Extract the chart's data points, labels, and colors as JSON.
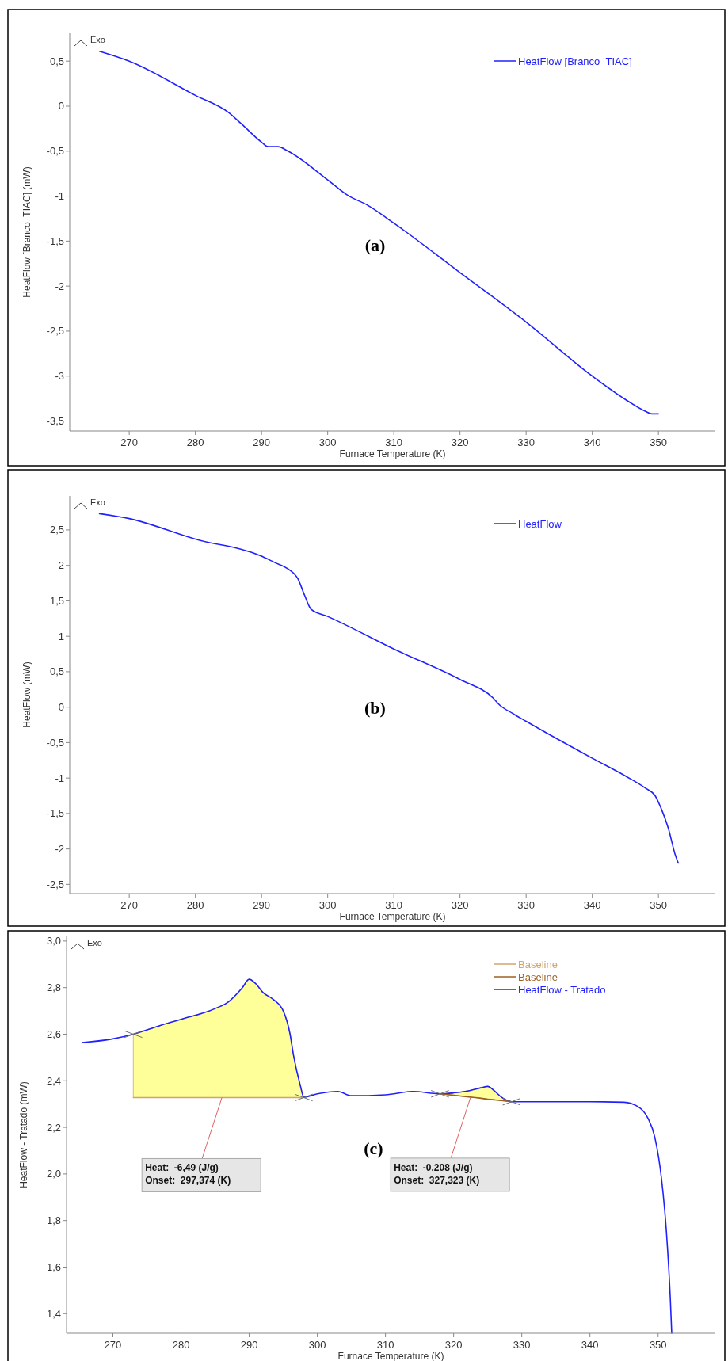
{
  "chart_data": [
    {
      "type": "line",
      "xlabel": "Furnace Temperature (K)",
      "ylabel": "HeatFlow [Branco_TIAC] (mW)",
      "xlim": [
        261,
        358.6
      ],
      "ylim": [
        -3.61,
        0.81
      ],
      "xticks": [
        270,
        280,
        290,
        300,
        310,
        320,
        330,
        340,
        350
      ],
      "yticks": [
        {
          "value": 0.5,
          "label": "0,5"
        },
        0,
        {
          "value": -0.5,
          "label": "-0,5"
        },
        -1,
        {
          "value": -1.5,
          "label": "-1,5"
        },
        -2,
        {
          "value": -2.5,
          "label": "-2,5"
        },
        -3,
        {
          "value": -3.5,
          "label": "-3,5"
        }
      ],
      "legend": "top right",
      "annotations": [
        "Exo",
        "(a)"
      ],
      "series": [
        {
          "name": "HeatFlow [Branco_TIAC]",
          "color": "#2020ff",
          "x": [
            265.5,
            270,
            280,
            285,
            287,
            290,
            291,
            292.5,
            294,
            300,
            303,
            306,
            310,
            320,
            330,
            340,
            345,
            348,
            349,
            350
          ],
          "values": [
            0.61,
            0.5,
            0.12,
            -0.07,
            -0.2,
            -0.4,
            -0.45,
            -0.45,
            -0.5,
            -0.82,
            -0.99,
            -1.1,
            -1.3,
            -1.85,
            -2.4,
            -3.0,
            -3.26,
            -3.39,
            -3.42,
            -3.42
          ]
        }
      ]
    },
    {
      "type": "line",
      "xlabel": "Furnace Temperature (K)",
      "ylabel": "HeatFlow (mW)",
      "xlim": [
        261,
        358.6
      ],
      "ylim": [
        -2.63,
        2.98
      ],
      "xticks": [
        270,
        280,
        290,
        300,
        310,
        320,
        330,
        340,
        350
      ],
      "yticks": [
        {
          "value": 2.5,
          "label": "2,5"
        },
        2,
        {
          "value": 1.5,
          "label": "1,5"
        },
        1,
        {
          "value": 0.5,
          "label": "0,5"
        },
        0,
        {
          "value": -0.5,
          "label": "-0,5"
        },
        -1,
        {
          "value": -1.5,
          "label": "-1,5"
        },
        -2,
        {
          "value": -2.5,
          "label": "-2,5"
        }
      ],
      "legend": "top right",
      "annotations": [
        "Exo",
        "(b)"
      ],
      "series": [
        {
          "name": "HeatFlow",
          "color": "#2020ff",
          "x": [
            265.5,
            270,
            280,
            290,
            292,
            294,
            295.5,
            296.5,
            297.5,
            300,
            310,
            320,
            325,
            326,
            328,
            330,
            340,
            345,
            348,
            349.5,
            350.5,
            351.5,
            352.5,
            353
          ],
          "values": [
            2.73,
            2.66,
            2.37,
            2.13,
            2.04,
            1.95,
            1.81,
            1.58,
            1.38,
            1.28,
            0.82,
            0.39,
            0.13,
            0.03,
            -0.09,
            -0.2,
            -0.72,
            -0.97,
            -1.14,
            -1.25,
            -1.45,
            -1.71,
            -2.07,
            -2.2
          ]
        }
      ]
    },
    {
      "type": "line",
      "xlabel": "Furnace Temperature (K)",
      "ylabel": "HeatFlow - Tratado (mW)",
      "xlim": [
        263.2,
        358.4
      ],
      "ylim": [
        1.316,
        3.02
      ],
      "xticks": [
        270,
        280,
        290,
        300,
        310,
        320,
        330,
        340,
        350
      ],
      "yticks": [
        {
          "value": 3.0,
          "label": "3,0"
        },
        {
          "value": 2.8,
          "label": "2,8"
        },
        {
          "value": 2.6,
          "label": "2,6"
        },
        {
          "value": 2.4,
          "label": "2,4"
        },
        {
          "value": 2.2,
          "label": "2,2"
        },
        {
          "value": 2.0,
          "label": "2,0"
        },
        {
          "value": 1.8,
          "label": "1,8"
        },
        {
          "value": 1.6,
          "label": "1,6"
        },
        {
          "value": 1.4,
          "label": "1,4"
        }
      ],
      "legend": "top right",
      "annotations": [
        "Exo",
        "(c)",
        {
          "text": "Heat:  -6,49 (J/g)\nOnset:  297,374 (K)",
          "x": 286,
          "y": 2.328
        },
        {
          "text": "Heat:  -0,208 (J/g)\nOnset:  327,323 (K)",
          "x": 322.5,
          "y": 2.33
        }
      ],
      "series": [
        {
          "name": "HeatFlow - Tratado",
          "color": "#2020ff",
          "x": [
            265.5,
            270,
            273,
            276.8,
            280,
            285,
            287,
            289,
            290,
            291,
            292,
            293.5,
            295,
            296,
            296.5,
            297.5,
            298,
            300,
            303,
            305,
            310,
            314,
            318,
            320,
            322,
            324,
            325,
            326,
            327,
            328.5,
            330,
            340,
            345,
            347,
            348.5,
            349.5,
            350.5,
            351.2,
            351.8,
            352
          ],
          "values": [
            2.564,
            2.58,
            2.6,
            2.636,
            2.664,
            2.71,
            2.74,
            2.8,
            2.836,
            2.816,
            2.78,
            2.75,
            2.7,
            2.6,
            2.51,
            2.38,
            2.33,
            2.344,
            2.354,
            2.336,
            2.34,
            2.354,
            2.344,
            2.348,
            2.356,
            2.37,
            2.376,
            2.356,
            2.33,
            2.31,
            2.31,
            2.31,
            2.308,
            2.29,
            2.24,
            2.16,
            1.98,
            1.76,
            1.46,
            1.316
          ]
        },
        {
          "type": "line",
          "name": "Baseline",
          "color": "#9c5f22",
          "x": [
            318,
            320,
            322,
            324,
            325,
            326,
            327,
            328.5
          ],
          "values": [
            2.344,
            2.338,
            2.331,
            2.325,
            2.321,
            2.318,
            2.315,
            2.31
          ],
          "lower": [
            2.344,
            2.338,
            2.331,
            2.325,
            2.321,
            2.318,
            2.315,
            2.31
          ],
          "upper": [
            2.344,
            2.348,
            2.356,
            2.37,
            2.376,
            2.356,
            2.33,
            2.31
          ]
        },
        {
          "type": "line",
          "name": "Baseline",
          "color": "#d4a46c",
          "x": [
            273,
            276.8,
            280,
            285,
            287,
            289,
            290,
            291,
            292,
            293.5,
            295,
            296,
            296.5,
            297.5,
            298
          ],
          "values": [
            2.328,
            2.328,
            2.328,
            2.328,
            2.328,
            2.328,
            2.328,
            2.328,
            2.328,
            2.328,
            2.328,
            2.328,
            2.328,
            2.328,
            2.328
          ],
          "lower": [
            2.328,
            2.328,
            2.328,
            2.328,
            2.328,
            2.328,
            2.328,
            2.328,
            2.328,
            2.328,
            2.328,
            2.328,
            2.328,
            2.328,
            2.328
          ],
          "upper": [
            2.6,
            2.636,
            2.664,
            2.71,
            2.74,
            2.8,
            2.836,
            2.816,
            2.78,
            2.75,
            2.7,
            2.6,
            2.51,
            2.38,
            2.33
          ]
        },
        {
          "type": "scatter",
          "marker": "cross",
          "color": "#707070",
          "x": [
            273,
            298,
            318,
            328.5
          ],
          "values": [
            2.6,
            2.328,
            2.344,
            2.31
          ]
        }
      ]
    }
  ]
}
